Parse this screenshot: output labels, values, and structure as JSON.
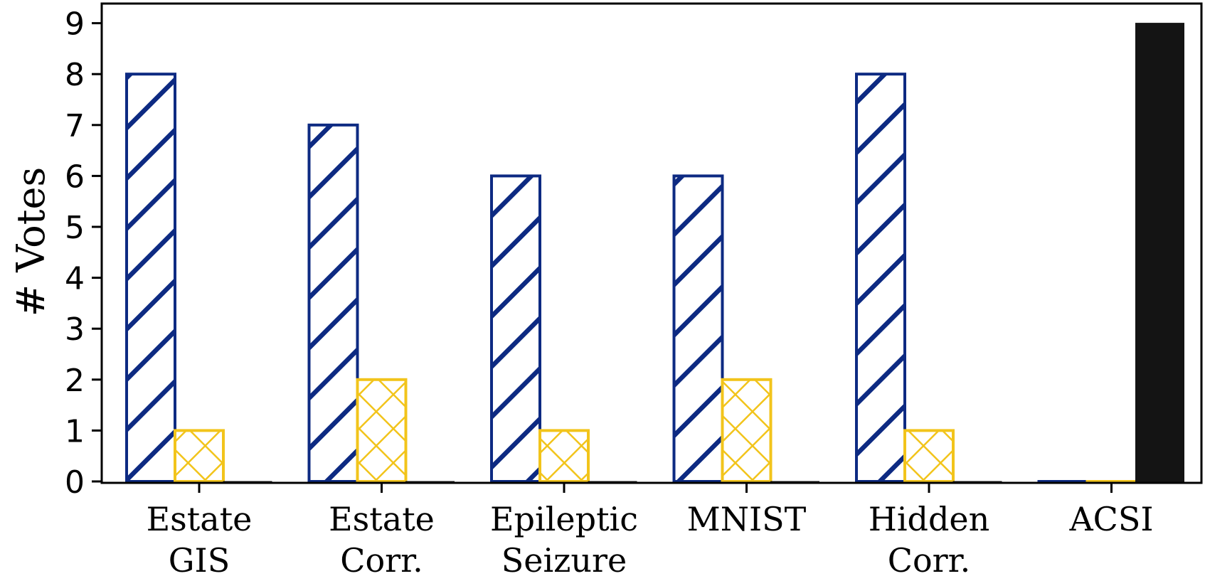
{
  "chart_data": {
    "type": "bar",
    "title": "",
    "xlabel": "",
    "ylabel": "# Votes",
    "ylim": [
      0,
      9
    ],
    "yticks": [
      "0",
      "1",
      "2",
      "3",
      "4",
      "5",
      "6",
      "7",
      "8",
      "9"
    ],
    "categories": [
      [
        "Estate",
        "GIS"
      ],
      [
        "Estate",
        "Corr."
      ],
      [
        "Epileptic",
        "Seizure"
      ],
      [
        "MNIST"
      ],
      [
        "Hidden",
        "Corr."
      ],
      [
        "ACSI"
      ]
    ],
    "series": [
      {
        "name": "series-1",
        "pattern": "diagonal-hatch",
        "color": "#0d2a82",
        "values": [
          8,
          7,
          6,
          6,
          8,
          0
        ]
      },
      {
        "name": "series-2",
        "pattern": "cross-hatch",
        "color": "#f2c41b",
        "values": [
          1,
          2,
          1,
          2,
          1,
          0
        ]
      },
      {
        "name": "series-3",
        "pattern": "solid",
        "color": "#141414",
        "values": [
          0,
          0,
          0,
          0,
          0,
          9
        ]
      }
    ],
    "grid": false,
    "legend": "none"
  }
}
